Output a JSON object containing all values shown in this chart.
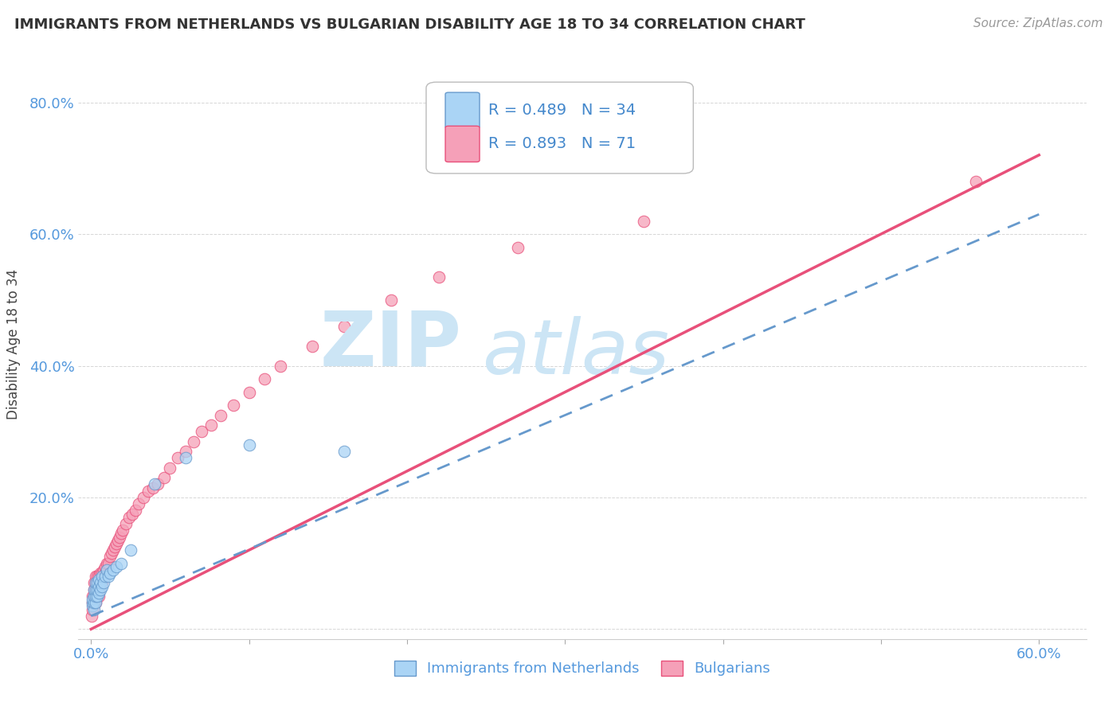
{
  "title": "IMMIGRANTS FROM NETHERLANDS VS BULGARIAN DISABILITY AGE 18 TO 34 CORRELATION CHART",
  "source": "Source: ZipAtlas.com",
  "ylabel": "Disability Age 18 to 34",
  "x_ticks": [
    0.0,
    0.1,
    0.2,
    0.3,
    0.4,
    0.5,
    0.6
  ],
  "x_tick_labels": [
    "0.0%",
    "",
    "",
    "",
    "",
    "",
    "60.0%"
  ],
  "y_ticks": [
    0.0,
    0.2,
    0.4,
    0.6,
    0.8
  ],
  "y_tick_labels": [
    "",
    "20.0%",
    "40.0%",
    "60.0%",
    "80.0%"
  ],
  "xlim": [
    -0.008,
    0.63
  ],
  "ylim": [
    -0.015,
    0.88
  ],
  "legend1_label": "Immigrants from Netherlands",
  "legend2_label": "Bulgarians",
  "R1": 0.489,
  "N1": 34,
  "R2": 0.893,
  "N2": 71,
  "blue_color": "#aad4f5",
  "pink_color": "#f5a0b8",
  "blue_line_color": "#6699cc",
  "pink_line_color": "#e8507a",
  "background_color": "#ffffff",
  "grid_color": "#cccccc",
  "netherlands_x": [
    0.001,
    0.001,
    0.001,
    0.002,
    0.002,
    0.002,
    0.002,
    0.003,
    0.003,
    0.003,
    0.003,
    0.004,
    0.004,
    0.004,
    0.005,
    0.005,
    0.005,
    0.006,
    0.006,
    0.007,
    0.007,
    0.008,
    0.009,
    0.01,
    0.011,
    0.012,
    0.014,
    0.016,
    0.019,
    0.025,
    0.04,
    0.06,
    0.1,
    0.16
  ],
  "netherlands_y": [
    0.035,
    0.04,
    0.045,
    0.03,
    0.04,
    0.05,
    0.06,
    0.04,
    0.05,
    0.06,
    0.07,
    0.05,
    0.06,
    0.07,
    0.055,
    0.065,
    0.075,
    0.06,
    0.07,
    0.065,
    0.08,
    0.07,
    0.08,
    0.09,
    0.08,
    0.085,
    0.09,
    0.095,
    0.1,
    0.12,
    0.22,
    0.26,
    0.28,
    0.27
  ],
  "bulgarian_x": [
    0.0005,
    0.001,
    0.001,
    0.001,
    0.0015,
    0.002,
    0.002,
    0.002,
    0.002,
    0.003,
    0.003,
    0.003,
    0.003,
    0.003,
    0.004,
    0.004,
    0.004,
    0.004,
    0.005,
    0.005,
    0.005,
    0.005,
    0.006,
    0.006,
    0.006,
    0.007,
    0.007,
    0.008,
    0.008,
    0.009,
    0.009,
    0.01,
    0.01,
    0.011,
    0.012,
    0.013,
    0.014,
    0.015,
    0.016,
    0.017,
    0.018,
    0.019,
    0.02,
    0.022,
    0.024,
    0.026,
    0.028,
    0.03,
    0.033,
    0.036,
    0.039,
    0.042,
    0.046,
    0.05,
    0.055,
    0.06,
    0.065,
    0.07,
    0.076,
    0.082,
    0.09,
    0.1,
    0.11,
    0.12,
    0.14,
    0.16,
    0.19,
    0.22,
    0.27,
    0.35,
    0.56
  ],
  "bulgarian_y": [
    0.02,
    0.03,
    0.04,
    0.05,
    0.04,
    0.04,
    0.05,
    0.06,
    0.07,
    0.04,
    0.05,
    0.06,
    0.07,
    0.08,
    0.05,
    0.06,
    0.07,
    0.08,
    0.05,
    0.06,
    0.07,
    0.08,
    0.065,
    0.075,
    0.085,
    0.07,
    0.085,
    0.08,
    0.09,
    0.085,
    0.095,
    0.09,
    0.1,
    0.1,
    0.11,
    0.115,
    0.12,
    0.125,
    0.13,
    0.135,
    0.14,
    0.145,
    0.15,
    0.16,
    0.17,
    0.175,
    0.18,
    0.19,
    0.2,
    0.21,
    0.215,
    0.22,
    0.23,
    0.245,
    0.26,
    0.27,
    0.285,
    0.3,
    0.31,
    0.325,
    0.34,
    0.36,
    0.38,
    0.4,
    0.43,
    0.46,
    0.5,
    0.535,
    0.58,
    0.62,
    0.68
  ],
  "trend_pink_x0": 0.0,
  "trend_pink_y0": 0.0,
  "trend_pink_x1": 0.6,
  "trend_pink_y1": 0.72,
  "trend_blue_x0": 0.0,
  "trend_blue_y0": 0.02,
  "trend_blue_x1": 0.6,
  "trend_blue_y1": 0.63
}
